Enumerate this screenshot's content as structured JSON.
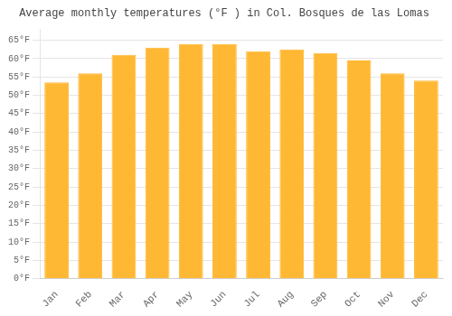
{
  "chart_data": {
    "type": "bar",
    "title": "Average monthly temperatures (°F ) in Col. Bosques de las Lomas",
    "categories": [
      "Jan",
      "Feb",
      "Mar",
      "Apr",
      "May",
      "Jun",
      "Jul",
      "Aug",
      "Sep",
      "Oct",
      "Nov",
      "Dec"
    ],
    "values": [
      53.5,
      56.0,
      61.0,
      63.0,
      64.0,
      64.0,
      62.0,
      62.5,
      61.5,
      59.5,
      56.0,
      54.0
    ],
    "color": "#FFB833",
    "ylim": [
      0,
      68
    ],
    "yticks": [
      {
        "value": 0,
        "label": "0°F"
      },
      {
        "value": 5,
        "label": "5°F"
      },
      {
        "value": 10,
        "label": "10°F"
      },
      {
        "value": 15,
        "label": "15°F"
      },
      {
        "value": 20,
        "label": "20°F"
      },
      {
        "value": 25,
        "label": "25°F"
      },
      {
        "value": 30,
        "label": "30°F"
      },
      {
        "value": 35,
        "label": "35°F"
      },
      {
        "value": 40,
        "label": "40°F"
      },
      {
        "value": 45,
        "label": "45°F"
      },
      {
        "value": 50,
        "label": "50°F"
      },
      {
        "value": 55,
        "label": "55°F"
      },
      {
        "value": 60,
        "label": "60°F"
      },
      {
        "value": 65,
        "label": "65°F"
      }
    ],
    "grid": true
  }
}
